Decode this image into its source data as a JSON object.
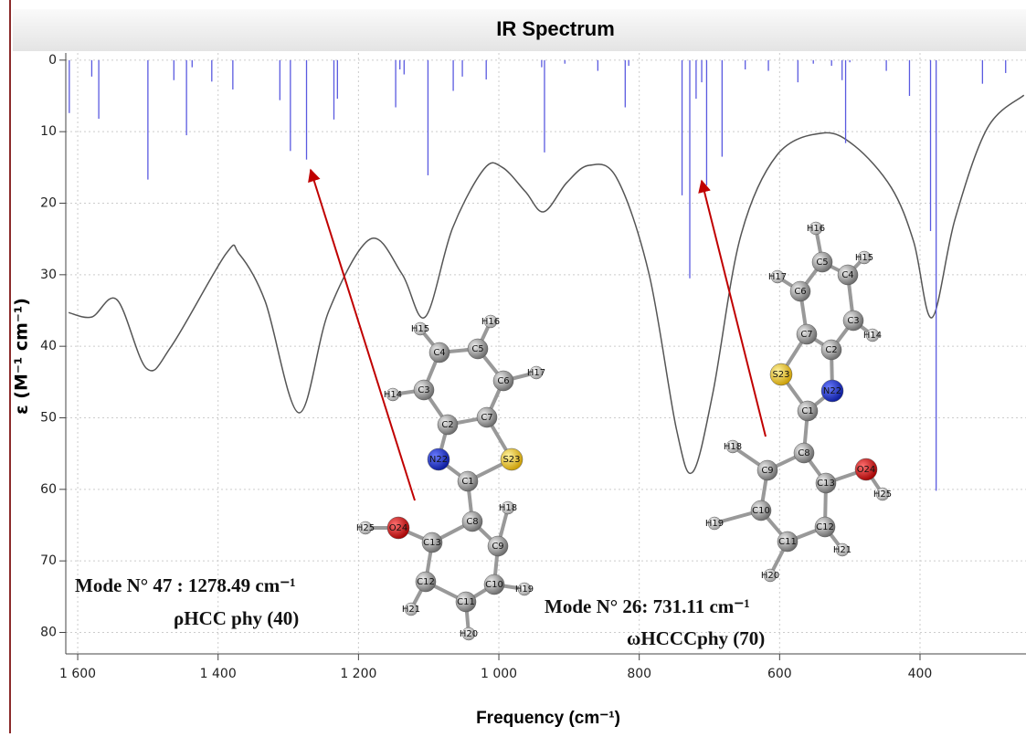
{
  "chart_data": {
    "type": "line",
    "title": "IR Spectrum",
    "x_label": "Frequency (cm⁻¹)",
    "y_label": "ε (M⁻¹ cm⁻¹)",
    "xlim": [
      1617,
      249
    ],
    "ylim": [
      -1,
      83
    ],
    "xticks": [
      {
        "value": 1600,
        "label": "1 600"
      },
      {
        "value": 1400,
        "label": "1 400"
      },
      {
        "value": 1200,
        "label": "1 200"
      },
      {
        "value": 1000,
        "label": "1 000"
      },
      800,
      600,
      400
    ],
    "yticks": [
      0,
      10,
      20,
      30,
      40,
      50,
      60,
      70,
      80
    ],
    "grid": true,
    "inverted_y": true,
    "series": [
      {
        "type": "line",
        "color": "#555555",
        "x": [
          1613,
          1580,
          1544,
          1502,
          1466,
          1389,
          1370,
          1333,
          1285,
          1242,
          1183,
          1138,
          1105,
          1066,
          1021,
          995,
          962,
          936,
          903,
          871,
          832,
          786,
          747,
          724,
          695,
          656,
          604,
          539,
          493,
          441,
          409,
          383,
          350,
          304,
          252
        ],
        "values": [
          35.3,
          35.9,
          33.5,
          43.1,
          39.9,
          27.1,
          27.1,
          33.7,
          49.3,
          35.0,
          25.0,
          29.9,
          35.9,
          23.5,
          15.2,
          15.0,
          18.4,
          21.2,
          17.1,
          14.7,
          16.5,
          29.9,
          51.6,
          57.6,
          46.5,
          24.8,
          13.3,
          10.2,
          12.0,
          17.8,
          25.4,
          36.0,
          22.2,
          9.5,
          4.9
        ]
      },
      {
        "type": "stick",
        "color": "#5a5ae0",
        "x": [
          1612,
          1580,
          1570,
          1500,
          1463,
          1445,
          1437,
          1409,
          1379,
          1312,
          1297,
          1274,
          1235,
          1230,
          1147,
          1141,
          1135,
          1101,
          1065,
          1052,
          1018,
          939,
          935,
          906,
          859,
          820,
          815,
          739,
          728,
          719,
          711,
          704,
          682,
          649,
          616,
          574,
          552,
          526,
          511,
          506,
          500,
          448,
          415,
          385,
          377,
          311,
          278
        ],
        "values": [
          7.4,
          2.3,
          8.2,
          16.7,
          2.8,
          10.5,
          1,
          3,
          4.1,
          5.6,
          12.7,
          13.9,
          8.3,
          5.4,
          6.6,
          1.3,
          2,
          16.1,
          4.3,
          2.3,
          2.7,
          1,
          12.9,
          0.5,
          1.5,
          6.6,
          0.8,
          18.9,
          30.5,
          5.4,
          3.1,
          17.5,
          13.5,
          1.3,
          1.5,
          3.1,
          0.5,
          0.8,
          2.8,
          11.6,
          0.3,
          1.5,
          5.0,
          23.9,
          60.2,
          3.3,
          1.8
        ]
      }
    ],
    "annotations": [
      {
        "title": "Mode N° 47 : 1278.49 cm⁻¹",
        "text": "ρHCC phy (40)"
      },
      {
        "title": "Mode N° 26: 731.11 cm⁻¹",
        "text": "ωHCCCphy (70)"
      }
    ],
    "molecules": [
      {
        "atoms": [
          "H15",
          "H16",
          "C4",
          "C5",
          "C3",
          "C6",
          "H17",
          "H14",
          "C2",
          "C7",
          "N22",
          "S23",
          "C1",
          "H18",
          "O24",
          "H25",
          "C8",
          "C13",
          "C9",
          "C12",
          "C10",
          "H21",
          "C11",
          "H19",
          "H20"
        ]
      },
      {
        "atoms": [
          "H16",
          "H15",
          "C5",
          "H17",
          "C4",
          "C6",
          "C7",
          "C3",
          "H14",
          "C2",
          "S23",
          "N22",
          "C1",
          "H18",
          "C8",
          "C9",
          "O24",
          "C13",
          "H25",
          "C10",
          "C12",
          "H19",
          "C11",
          "H21",
          "H20"
        ]
      }
    ]
  }
}
